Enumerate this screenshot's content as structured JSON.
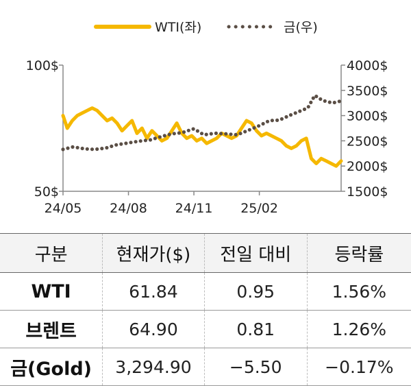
{
  "chart_data": {
    "type": "line",
    "legend": {
      "placement": "top-center",
      "entries": [
        "WTI(좌)",
        "금(우)"
      ]
    },
    "x_tick_labels": [
      "24/05",
      "24/08",
      "24/11",
      "25/02"
    ],
    "y_left": {
      "ylim": [
        50,
        100
      ],
      "tick_labels": [
        "100$",
        "50$"
      ]
    },
    "y_right": {
      "ylim": [
        1500,
        4000
      ],
      "tick_labels": [
        "4000$",
        "3500$",
        "3000$",
        "2500$",
        "2000$",
        "1500$"
      ]
    },
    "series": [
      {
        "name": "WTI(좌)",
        "axis": "left",
        "color": "#f5b800",
        "style": "solid",
        "x": [
          "2024-05-01",
          "2024-05-07",
          "2024-05-14",
          "2024-05-21",
          "2024-05-28",
          "2024-06-04",
          "2024-06-11",
          "2024-06-18",
          "2024-06-25",
          "2024-07-02",
          "2024-07-09",
          "2024-07-16",
          "2024-07-23",
          "2024-07-30",
          "2024-08-06",
          "2024-08-13",
          "2024-08-20",
          "2024-08-27",
          "2024-09-03",
          "2024-09-10",
          "2024-09-17",
          "2024-09-24",
          "2024-10-01",
          "2024-10-08",
          "2024-10-15",
          "2024-10-22",
          "2024-10-29",
          "2024-11-05",
          "2024-11-12",
          "2024-11-19",
          "2024-11-26",
          "2024-12-03",
          "2024-12-10",
          "2024-12-17",
          "2024-12-24",
          "2024-12-31",
          "2025-01-07",
          "2025-01-14",
          "2025-01-21",
          "2025-01-28",
          "2025-02-04",
          "2025-02-11",
          "2025-02-18",
          "2025-02-25",
          "2025-03-04",
          "2025-03-11",
          "2025-03-18",
          "2025-03-25",
          "2025-04-01",
          "2025-04-08",
          "2025-04-15",
          "2025-04-22",
          "2025-04-29",
          "2025-05-06",
          "2025-05-13",
          "2025-05-20",
          "2025-05-27"
        ],
        "values": [
          80,
          75,
          78,
          80,
          81,
          82,
          83,
          82,
          80,
          78,
          79,
          77,
          74,
          76,
          78,
          73,
          75,
          71,
          74,
          72,
          70,
          71,
          74,
          77,
          73,
          71,
          72,
          70,
          71,
          69,
          70,
          71,
          73,
          72,
          71,
          72,
          75,
          78,
          77,
          74,
          72,
          73,
          72,
          71,
          70,
          68,
          67,
          68,
          70,
          71,
          63,
          61,
          63,
          62,
          61,
          60,
          62
        ]
      },
      {
        "name": "금(우)",
        "axis": "right",
        "color": "#5a4e45",
        "style": "dotted",
        "x": [
          "2024-05-01",
          "2024-05-15",
          "2024-06-01",
          "2024-06-15",
          "2024-07-01",
          "2024-07-15",
          "2024-08-01",
          "2024-08-15",
          "2024-09-01",
          "2024-09-15",
          "2024-10-01",
          "2024-10-15",
          "2024-11-01",
          "2024-11-15",
          "2024-12-01",
          "2024-12-15",
          "2025-01-01",
          "2025-01-15",
          "2025-02-01",
          "2025-02-15",
          "2025-03-01",
          "2025-03-15",
          "2025-04-01",
          "2025-04-10",
          "2025-04-20",
          "2025-05-01",
          "2025-05-15",
          "2025-05-27"
        ],
        "values": [
          2330,
          2380,
          2340,
          2330,
          2360,
          2420,
          2460,
          2490,
          2520,
          2580,
          2640,
          2660,
          2740,
          2620,
          2650,
          2640,
          2620,
          2700,
          2800,
          2900,
          2910,
          3000,
          3100,
          3150,
          3400,
          3300,
          3250,
          3290
        ]
      }
    ],
    "x_domain": [
      "2024-05-01",
      "2025-05-27"
    ]
  },
  "table": {
    "headers": [
      "구분",
      "현재가($)",
      "전일 대비",
      "등락률"
    ],
    "rows": [
      [
        "WTI",
        "61.84",
        "0.95",
        "1.56%"
      ],
      [
        "브렌트",
        "64.90",
        "0.81",
        "1.26%"
      ],
      [
        "금(Gold)",
        "3,294.90",
        "−5.50",
        "−0.17%"
      ]
    ]
  }
}
